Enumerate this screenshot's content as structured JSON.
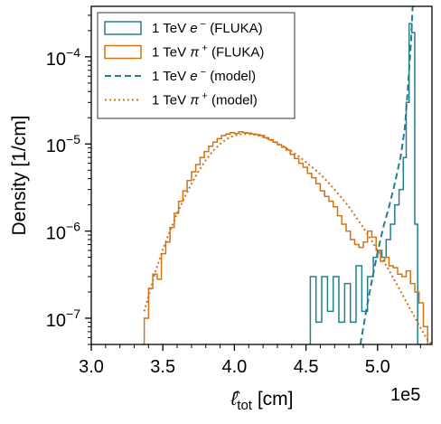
{
  "chart_data": {
    "type": "line",
    "xlabel_main": "ℓ̂",
    "xlabel_sub": "tot",
    "xlabel_unit": " [cm]",
    "ylabel": "Density [1/cm]",
    "x_offset_label": "1e5",
    "xlim": [
      300000,
      538000
    ],
    "ylim": [
      5e-08,
      0.00038
    ],
    "yscale": "log",
    "grid": false,
    "legend_position": "upper-left",
    "x_ticks": [
      {
        "value": 300000,
        "label": "3.0"
      },
      {
        "value": 350000,
        "label": "3.5"
      },
      {
        "value": 400000,
        "label": "4.0"
      },
      {
        "value": 450000,
        "label": "4.5"
      },
      {
        "value": 500000,
        "label": "5.0"
      }
    ],
    "y_ticks": [
      {
        "value": 1e-07,
        "label_base": "10",
        "label_exp": "−7"
      },
      {
        "value": 1e-06,
        "label_base": "10",
        "label_exp": "−6"
      },
      {
        "value": 1e-05,
        "label_base": "10",
        "label_exp": "−5"
      },
      {
        "value": 0.0001,
        "label_base": "10",
        "label_exp": "−4"
      }
    ],
    "series": [
      {
        "name_pre": "1 TeV ",
        "name_sym": "e",
        "name_sup": "−",
        "name_post": " (FLUKA)",
        "style": "step",
        "color": "#237f8e",
        "x": [
          453000,
          457000,
          461000,
          465000,
          469000,
          473000,
          477000,
          481000,
          485000,
          489000,
          493000,
          497000,
          500000,
          503000,
          506000,
          509000,
          512000,
          515000,
          518000,
          520000,
          522000,
          524000,
          526000,
          528000
        ],
        "y": [
          3e-07,
          9e-08,
          3e-07,
          1.2e-07,
          3e-07,
          9e-08,
          2.5e-07,
          9e-08,
          4e-07,
          1.2e-07,
          3e-07,
          5e-07,
          6e-07,
          5e-07,
          8e-07,
          1.2e-06,
          2e-06,
          3e-06,
          7e-06,
          3e-05,
          0.00024,
          0.00019,
          1.2e-06,
          5e-08
        ]
      },
      {
        "name_pre": "1 TeV ",
        "name_sym": "π",
        "name_sup": "+",
        "name_post": " (FLUKA)",
        "style": "step",
        "color": "#cf7417",
        "x": [
          337000,
          340000,
          343000,
          346000,
          349000,
          352000,
          355000,
          358000,
          361000,
          364000,
          367000,
          370000,
          373000,
          376000,
          379000,
          382000,
          385000,
          388000,
          391000,
          394000,
          397000,
          400000,
          403000,
          406000,
          409000,
          412000,
          415000,
          418000,
          421000,
          424000,
          427000,
          430000,
          433000,
          436000,
          439000,
          442000,
          445000,
          448000,
          451000,
          454000,
          457000,
          460000,
          463000,
          466000,
          469000,
          472000,
          475000,
          478000,
          481000,
          484000,
          487000,
          490000,
          493000,
          496000,
          499000,
          502000,
          505000,
          508000,
          511000,
          514000,
          517000,
          520000,
          523000,
          526000,
          529000,
          532000
        ],
        "y": [
          1e-07,
          2.2e-07,
          3.2e-07,
          2.8e-07,
          5.5e-07,
          7.5e-07,
          1.1e-06,
          1.6e-06,
          2.2e-06,
          2.9e-06,
          3.8e-06,
          4.8e-06,
          5.8e-06,
          7e-06,
          8.2e-06,
          9.4e-06,
          1.05e-05,
          1.15e-05,
          1.25e-05,
          1.3e-05,
          1.35e-05,
          1.32e-05,
          1.38e-05,
          1.35e-05,
          1.33e-05,
          1.3e-05,
          1.28e-05,
          1.25e-05,
          1.18e-05,
          1.12e-05,
          1.05e-05,
          9.8e-06,
          9.2e-06,
          8.5e-06,
          7.6e-06,
          6.8e-06,
          6e-06,
          5.4e-06,
          4.6e-06,
          4.1e-06,
          3.5e-06,
          2.9e-06,
          2.5e-06,
          2.2e-06,
          1.9e-06,
          1.5e-06,
          1.2e-06,
          1e-06,
          8e-07,
          7e-07,
          6.5e-07,
          7.5e-07,
          1e-06,
          8.5e-07,
          6e-07,
          4.5e-07,
          5e-07,
          4e-07,
          3.8e-07,
          3.2e-07,
          3e-07,
          3.5e-07,
          2.5e-07,
          2e-07,
          1.5e-07,
          8e-08
        ]
      },
      {
        "name_pre": "1 TeV ",
        "name_sym": "e",
        "name_sup": "−",
        "name_post": " (model)",
        "style": "dashed",
        "color": "#237f8e",
        "x": [
          488000,
          492000,
          496000,
          500000,
          504000,
          508000,
          512000,
          516000,
          519000,
          521000,
          522500,
          523500,
          524500,
          526000
        ],
        "y": [
          5e-08,
          1.2e-07,
          2.7e-07,
          5.7e-07,
          1.1e-06,
          1.9e-06,
          3.5e-06,
          7e-06,
          1.5e-05,
          4e-05,
          9e-05,
          0.00016,
          0.00038,
          0.00038
        ]
      },
      {
        "name_pre": "1 TeV ",
        "name_sym": "π",
        "name_sup": "+",
        "name_post": " (model)",
        "style": "dotted",
        "color": "#cf7417",
        "x": [
          337000,
          340000,
          345000,
          350000,
          355000,
          360000,
          365000,
          370000,
          375000,
          380000,
          385000,
          390000,
          395000,
          400000,
          405000,
          410000,
          415000,
          420000,
          425000,
          430000,
          435000,
          440000,
          445000,
          450000,
          455000,
          460000,
          465000,
          470000,
          475000,
          480000,
          485000,
          490000,
          495000,
          500000,
          505000,
          510000,
          515000,
          520000,
          525000,
          530000,
          535000,
          538000
        ],
        "y": [
          1.2e-07,
          1.8e-07,
          3.5e-07,
          6.2e-07,
          1e-06,
          1.6e-06,
          2.4e-06,
          3.5e-06,
          4.9e-06,
          6.5e-06,
          8.3e-06,
          1e-05,
          1.15e-05,
          1.25e-05,
          1.3e-05,
          1.3e-05,
          1.27e-05,
          1.2e-05,
          1.12e-05,
          1.02e-05,
          9.2e-06,
          8.2e-06,
          7.2e-06,
          6.2e-06,
          5.3e-06,
          4.5e-06,
          3.7e-06,
          3e-06,
          2.4e-06,
          1.9e-06,
          1.45e-06,
          1.1e-06,
          8.2e-07,
          6e-07,
          4.3e-07,
          3.1e-07,
          2.2e-07,
          1.55e-07,
          1.1e-07,
          7.8e-08,
          5.6e-08,
          5e-08
        ]
      }
    ]
  }
}
